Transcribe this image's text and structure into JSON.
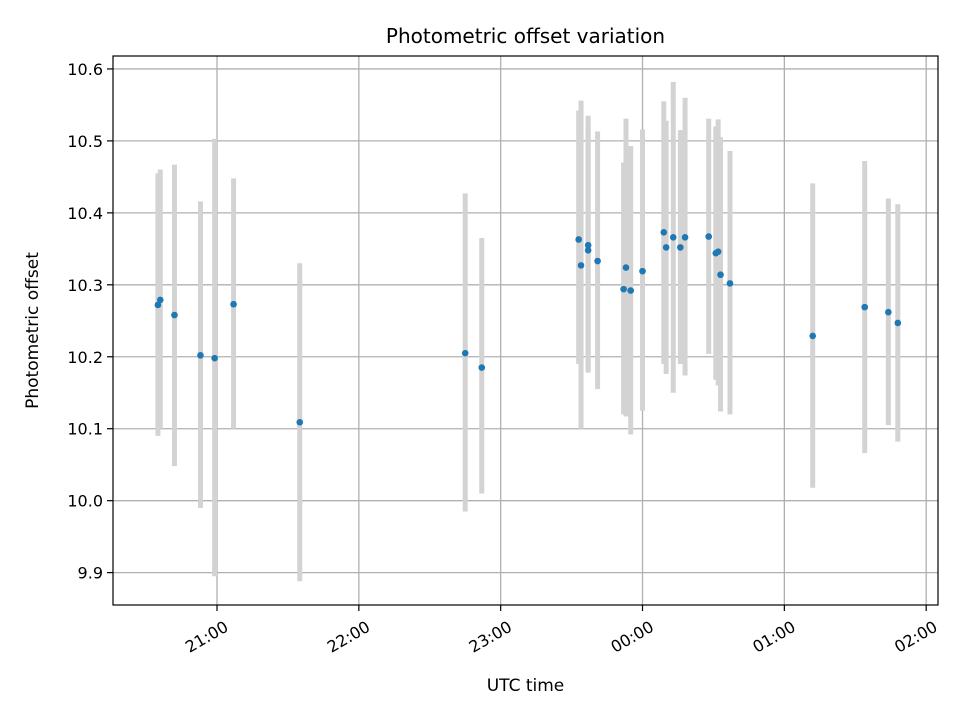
{
  "chart_data": {
    "type": "scatter",
    "title": "Photometric offset variation",
    "xlabel": "UTC time",
    "ylabel": "Photometric offset",
    "grid": true,
    "xlim": [
      "20:16",
      "26:05"
    ],
    "ylim": [
      9.855,
      10.618
    ],
    "x_ticks": [
      "21:00",
      "22:00",
      "23:00",
      "00:00",
      "01:00",
      "02:00"
    ],
    "y_ticks": [
      "9.9",
      "10.0",
      "10.1",
      "10.2",
      "10.3",
      "10.4",
      "10.5",
      "10.6"
    ],
    "colors": {
      "point": "#1f77b4",
      "errorbar": "#d3d3d3",
      "grid": "#b0b0b0",
      "axis": "#000000"
    },
    "series": [
      {
        "points": [
          {
            "t": "20:35",
            "y": 10.272,
            "lo": 10.09,
            "hi": 10.455
          },
          {
            "t": "20:36",
            "y": 10.279,
            "lo": 10.1,
            "hi": 10.46
          },
          {
            "t": "20:42",
            "y": 10.258,
            "lo": 10.048,
            "hi": 10.467
          },
          {
            "t": "20:53",
            "y": 10.202,
            "lo": 9.99,
            "hi": 10.416
          },
          {
            "t": "20:59",
            "y": 10.198,
            "lo": 9.895,
            "hi": 10.503
          },
          {
            "t": "21:07",
            "y": 10.273,
            "lo": 10.1,
            "hi": 10.448
          },
          {
            "t": "21:35",
            "y": 10.109,
            "lo": 9.888,
            "hi": 10.33
          },
          {
            "t": "22:45",
            "y": 10.205,
            "lo": 9.985,
            "hi": 10.427
          },
          {
            "t": "22:52",
            "y": 10.185,
            "lo": 10.01,
            "hi": 10.365
          },
          {
            "t": "23:33",
            "y": 10.363,
            "lo": 10.19,
            "hi": 10.542
          },
          {
            "t": "23:34",
            "y": 10.327,
            "lo": 10.1,
            "hi": 10.556
          },
          {
            "t": "23:37",
            "y": 10.355,
            "lo": 10.18,
            "hi": 10.535
          },
          {
            "t": "23:37",
            "y": 10.348,
            "lo": 10.178,
            "hi": 10.52
          },
          {
            "t": "23:41",
            "y": 10.333,
            "lo": 10.155,
            "hi": 10.513
          },
          {
            "t": "23:52",
            "y": 10.294,
            "lo": 10.12,
            "hi": 10.47
          },
          {
            "t": "23:53",
            "y": 10.324,
            "lo": 10.117,
            "hi": 10.531
          },
          {
            "t": "23:55",
            "y": 10.292,
            "lo": 10.092,
            "hi": 10.493
          },
          {
            "t": "24:00",
            "y": 10.319,
            "lo": 10.125,
            "hi": 10.516
          },
          {
            "t": "24:09",
            "y": 10.373,
            "lo": 10.19,
            "hi": 10.555
          },
          {
            "t": "24:10",
            "y": 10.352,
            "lo": 10.176,
            "hi": 10.528
          },
          {
            "t": "24:13",
            "y": 10.366,
            "lo": 10.15,
            "hi": 10.582
          },
          {
            "t": "24:16",
            "y": 10.352,
            "lo": 10.19,
            "hi": 10.515
          },
          {
            "t": "24:18",
            "y": 10.366,
            "lo": 10.174,
            "hi": 10.56
          },
          {
            "t": "24:28",
            "y": 10.367,
            "lo": 10.204,
            "hi": 10.531
          },
          {
            "t": "24:31",
            "y": 10.344,
            "lo": 10.168,
            "hi": 10.52
          },
          {
            "t": "24:32",
            "y": 10.346,
            "lo": 10.16,
            "hi": 10.53
          },
          {
            "t": "24:33",
            "y": 10.314,
            "lo": 10.124,
            "hi": 10.505
          },
          {
            "t": "24:37",
            "y": 10.302,
            "lo": 10.12,
            "hi": 10.486
          },
          {
            "t": "25:12",
            "y": 10.229,
            "lo": 10.018,
            "hi": 10.441
          },
          {
            "t": "25:34",
            "y": 10.269,
            "lo": 10.066,
            "hi": 10.472
          },
          {
            "t": "25:44",
            "y": 10.262,
            "lo": 10.105,
            "hi": 10.42
          },
          {
            "t": "25:48",
            "y": 10.247,
            "lo": 10.082,
            "hi": 10.412
          }
        ]
      }
    ]
  }
}
